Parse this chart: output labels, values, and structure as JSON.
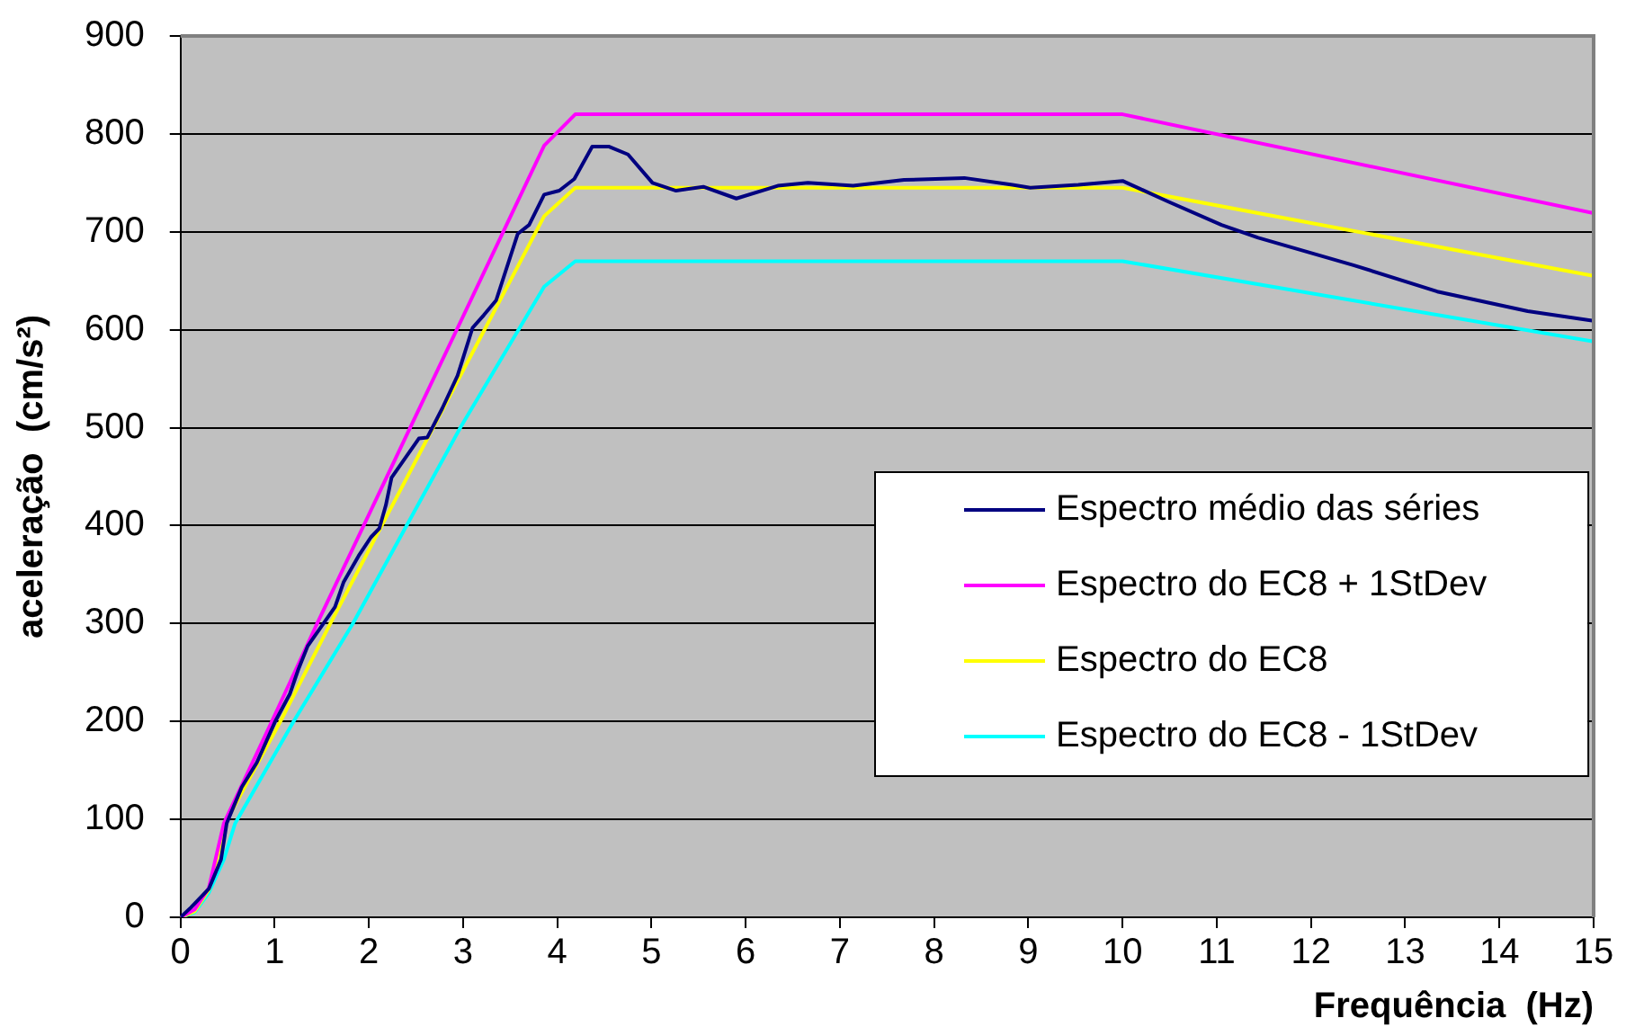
{
  "chart_data": {
    "type": "line",
    "xlabel": "Frequência  (Hz)",
    "ylabel": "aceleração  (cm/s²)",
    "xlim": [
      0,
      15
    ],
    "ylim": [
      0,
      900
    ],
    "xticks": [
      0,
      1,
      2,
      3,
      4,
      5,
      6,
      7,
      8,
      9,
      10,
      11,
      12,
      13,
      14,
      15
    ],
    "yticks": [
      0,
      100,
      200,
      300,
      400,
      500,
      600,
      700,
      800,
      900
    ],
    "grid": "y",
    "legend": "right",
    "marker": "none",
    "line_style": "solid",
    "series": [
      {
        "name": "Espectro médio das séries",
        "color": "#000080",
        "x": [
          0,
          0.11,
          0.3,
          0.43,
          0.49,
          0.65,
          0.81,
          1,
          1.16,
          1.25,
          1.35,
          1.51,
          1.64,
          1.73,
          1.89,
          2.02,
          2.11,
          2.18,
          2.24,
          2.4,
          2.53,
          2.62,
          2.78,
          2.94,
          3.1,
          3.22,
          3.35,
          3.58,
          3.7,
          3.86,
          4.02,
          4.18,
          4.37,
          4.55,
          4.75,
          5.01,
          5.26,
          5.55,
          5.9,
          6.34,
          6.66,
          7.14,
          7.68,
          8.32,
          8.83,
          9.02,
          9.53,
          10,
          10.48,
          11.05,
          11.44,
          12.45,
          13.34,
          14.3,
          15
        ],
        "values": [
          0,
          10,
          29,
          59,
          96,
          133,
          158,
          199,
          228,
          253,
          277,
          299,
          317,
          342,
          369,
          388,
          397,
          421,
          449,
          471,
          489,
          490,
          520,
          553,
          602,
          615,
          630,
          698,
          707,
          738,
          742,
          754,
          787,
          787,
          779,
          750,
          742,
          746,
          734,
          747,
          750,
          747,
          753,
          755,
          748,
          745,
          748,
          752,
          731,
          707,
          694,
          666,
          639,
          619,
          609
        ]
      },
      {
        "name": "Espectro do EC8 + 1StDev",
        "color": "#ff00ff",
        "x": [
          0,
          0.15,
          0.3,
          0.46,
          0.97,
          1.45,
          3.86,
          4.19,
          10,
          15
        ],
        "values": [
          0,
          8,
          30,
          96,
          200,
          300,
          788,
          820,
          820,
          719
        ]
      },
      {
        "name": "Espectro do EC8",
        "color": "#ffff00",
        "x": [
          0,
          0.15,
          0.3,
          0.49,
          1.06,
          1.59,
          3.86,
          4.19,
          10,
          15
        ],
        "values": [
          0,
          6,
          28,
          99,
          200,
          300,
          716,
          745,
          745,
          655
        ]
      },
      {
        "name": "Espectro do EC8 - 1StDev",
        "color": "#00ffff",
        "x": [
          0,
          0.15,
          0.3,
          0.46,
          0.58,
          1.2,
          1.83,
          2.97,
          3.86,
          4.19,
          10,
          15
        ],
        "values": [
          0,
          5,
          25,
          59,
          96,
          200,
          300,
          500,
          644,
          670,
          670,
          588
        ]
      }
    ]
  }
}
